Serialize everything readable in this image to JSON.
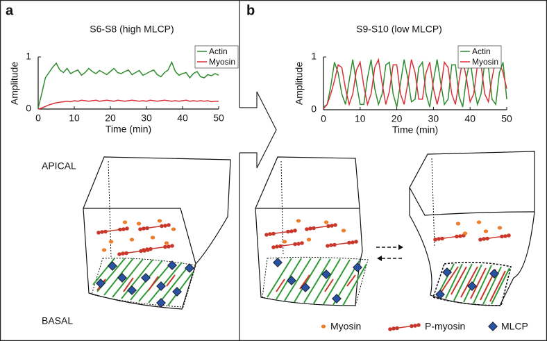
{
  "panels": [
    {
      "letter": "a"
    },
    {
      "letter": "b"
    }
  ],
  "chart_data": [
    {
      "type": "line",
      "title": "S6-S8 (high MLCP)",
      "xlabel": "Time (min)",
      "ylabel": "Amplitude",
      "x": [
        0,
        1,
        2,
        3,
        4,
        5,
        6,
        7,
        8,
        9,
        10,
        11,
        12,
        13,
        14,
        15,
        16,
        17,
        18,
        19,
        20,
        21,
        22,
        23,
        24,
        25,
        26,
        27,
        28,
        29,
        30,
        31,
        32,
        33,
        34,
        35,
        36,
        37,
        38,
        39,
        40,
        41,
        42,
        43,
        44,
        45,
        46,
        47,
        48,
        49,
        50
      ],
      "series": [
        {
          "name": "Actin",
          "color": "#2e8b2e",
          "values": [
            0.02,
            0.3,
            0.6,
            0.7,
            0.8,
            0.88,
            0.75,
            0.7,
            0.78,
            0.68,
            0.72,
            0.75,
            0.65,
            0.7,
            0.78,
            0.72,
            0.68,
            0.74,
            0.7,
            0.66,
            0.72,
            0.78,
            0.7,
            0.68,
            0.72,
            0.75,
            0.66,
            0.7,
            0.74,
            0.65,
            0.68,
            0.72,
            0.75,
            0.66,
            0.62,
            0.7,
            0.75,
            0.9,
            0.72,
            0.65,
            0.68,
            0.7,
            0.6,
            0.68,
            0.72,
            0.62,
            0.6,
            0.66,
            0.64,
            0.68,
            0.65
          ]
        },
        {
          "name": "Myosin",
          "color": "#d9303a",
          "values": [
            0,
            0.02,
            0.05,
            0.08,
            0.1,
            0.12,
            0.13,
            0.14,
            0.15,
            0.14,
            0.16,
            0.15,
            0.17,
            0.16,
            0.15,
            0.16,
            0.17,
            0.15,
            0.16,
            0.17,
            0.16,
            0.15,
            0.17,
            0.16,
            0.15,
            0.16,
            0.17,
            0.16,
            0.15,
            0.16,
            0.15,
            0.17,
            0.16,
            0.15,
            0.16,
            0.17,
            0.16,
            0.15,
            0.16,
            0.15,
            0.16,
            0.17,
            0.15,
            0.16,
            0.15,
            0.16,
            0.15,
            0.16,
            0.14,
            0.15,
            0.15
          ]
        }
      ],
      "xlim": [
        0,
        50
      ],
      "xticks": [
        0,
        10,
        20,
        30,
        40,
        50
      ],
      "ylim": [
        0,
        1
      ],
      "yticks": [
        0,
        1
      ]
    },
    {
      "type": "line",
      "title": "S9-S10 (low MLCP)",
      "xlabel": "Time (min)",
      "ylabel": "Amplitude",
      "x": [
        0,
        1,
        2,
        3,
        4,
        5,
        6,
        7,
        8,
        9,
        10,
        11,
        12,
        13,
        14,
        15,
        16,
        17,
        18,
        19,
        20,
        21,
        22,
        23,
        24,
        25,
        26,
        27,
        28,
        29,
        30,
        31,
        32,
        33,
        34,
        35,
        36,
        37,
        38,
        39,
        40,
        41,
        42,
        43,
        44,
        45,
        46,
        47,
        48,
        49,
        50
      ],
      "series": [
        {
          "name": "Actin",
          "color": "#2e8b2e",
          "values": [
            0.05,
            0.1,
            0.45,
            0.9,
            0.7,
            0.3,
            0.1,
            0.55,
            0.95,
            0.5,
            0.1,
            0.1,
            0.6,
            0.95,
            0.4,
            0.1,
            0.3,
            0.85,
            0.9,
            0.3,
            0.05,
            0.5,
            0.95,
            0.6,
            0.15,
            0.2,
            0.8,
            0.9,
            0.3,
            0.05,
            0.55,
            0.95,
            0.5,
            0.1,
            0.2,
            0.85,
            0.85,
            0.25,
            0.05,
            0.6,
            0.95,
            0.45,
            0.1,
            0.3,
            0.9,
            0.8,
            0.2,
            0.1,
            0.7,
            0.9,
            0.2
          ]
        },
        {
          "name": "Myosin",
          "color": "#d9303a",
          "values": [
            0.02,
            0.1,
            0.3,
            0.55,
            0.85,
            0.8,
            0.4,
            0.1,
            0.3,
            0.75,
            0.9,
            0.45,
            0.1,
            0.3,
            0.8,
            0.95,
            0.5,
            0.1,
            0.35,
            0.85,
            0.85,
            0.3,
            0.1,
            0.5,
            0.95,
            0.7,
            0.2,
            0.2,
            0.7,
            0.9,
            0.4,
            0.1,
            0.4,
            0.9,
            0.8,
            0.3,
            0.1,
            0.55,
            0.95,
            0.6,
            0.15,
            0.3,
            0.85,
            0.85,
            0.3,
            0.15,
            0.6,
            0.95,
            0.9,
            0.7,
            0.4
          ]
        }
      ],
      "xlim": [
        0,
        50
      ],
      "xticks": [
        0,
        10,
        20,
        30,
        40,
        50
      ],
      "ylim": [
        0,
        1
      ],
      "yticks": [
        0,
        1
      ]
    }
  ],
  "diagram": {
    "apical": "APICAL",
    "basal": "BASAL"
  },
  "legend": {
    "myosin": "Myosin",
    "p_myosin": "P-myosin",
    "mlcp": "MLCP"
  }
}
